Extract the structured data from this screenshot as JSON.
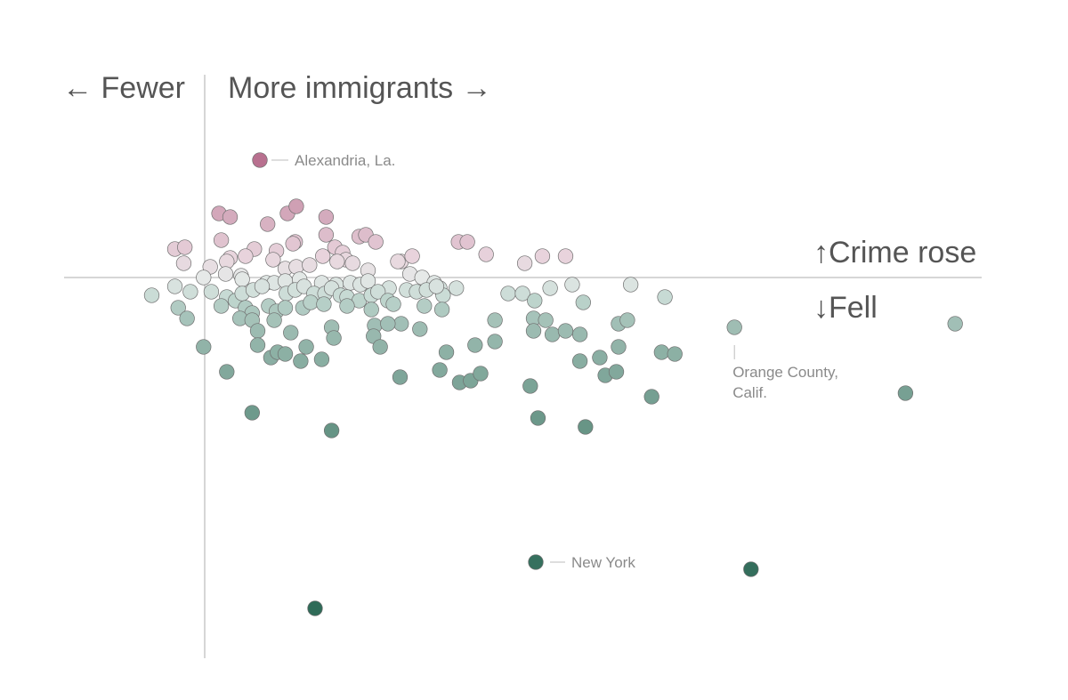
{
  "chart_data": {
    "type": "scatter",
    "title": "",
    "xlabel": "",
    "ylabel": "",
    "x_direction_labels": {
      "left": "← Fewer",
      "right": "More immigrants →"
    },
    "y_direction_labels": {
      "up": "↑Crime rose",
      "down": "↓Fell"
    },
    "xlim": [
      -12,
      70
    ],
    "ylim": [
      -30,
      10.5
    ],
    "grid": false,
    "legend": "none",
    "color_scale": {
      "rose_strong": "#b8708f",
      "rose_light": "#e8d3dc",
      "neutral": "#e6e9e8",
      "fell_light": "#c4d9d2",
      "fell_strong": "#2f6b58"
    },
    "annotations": [
      {
        "id": "alexandria",
        "label": "Alexandria, La.",
        "x": 5,
        "y": 6.6
      },
      {
        "id": "orange",
        "label_lines": [
          "Orange County,",
          "Calif."
        ],
        "x": 48,
        "y": -2.8
      },
      {
        "id": "newyork",
        "label": "New York",
        "x": 30,
        "y": -16.0
      }
    ],
    "points": [
      {
        "x": 5,
        "y": 6.6
      },
      {
        "x": 1.3,
        "y": 3.6
      },
      {
        "x": 2.3,
        "y": 3.4
      },
      {
        "x": 5.7,
        "y": 3.0
      },
      {
        "x": 7.5,
        "y": 3.6
      },
      {
        "x": 8.3,
        "y": 4.0
      },
      {
        "x": 11.0,
        "y": 3.4
      },
      {
        "x": 1.5,
        "y": 2.1
      },
      {
        "x": 4.5,
        "y": 1.6
      },
      {
        "x": 6.5,
        "y": 1.5
      },
      {
        "x": 8.2,
        "y": 2.0
      },
      {
        "x": 11,
        "y": 2.4
      },
      {
        "x": 14,
        "y": 2.3
      },
      {
        "x": 14.6,
        "y": 2.4
      },
      {
        "x": 15.5,
        "y": 2.0
      },
      {
        "x": 23,
        "y": 2.0
      },
      {
        "x": 23.8,
        "y": 2.0
      },
      {
        "x": 25.5,
        "y": 1.3
      },
      {
        "x": 30.6,
        "y": 1.2
      },
      {
        "x": -2.7,
        "y": 1.6
      },
      {
        "x": -1.8,
        "y": 1.7
      },
      {
        "x": -1.9,
        "y": 0.8
      },
      {
        "x": 2.3,
        "y": 1.1
      },
      {
        "x": 3.7,
        "y": 1.2
      },
      {
        "x": 6.2,
        "y": 1.0
      },
      {
        "x": 8.0,
        "y": 1.9
      },
      {
        "x": 10.7,
        "y": 1.2
      },
      {
        "x": 11.8,
        "y": 1.7
      },
      {
        "x": 12.5,
        "y": 1.4
      },
      {
        "x": 12.8,
        "y": 1.0
      },
      {
        "x": 13.4,
        "y": 0.8
      },
      {
        "x": 17.8,
        "y": 0.9
      },
      {
        "x": 18.8,
        "y": 1.2
      },
      {
        "x": 29,
        "y": 0.8
      },
      {
        "x": 32.7,
        "y": 1.2
      },
      {
        "x": 0.5,
        "y": 0.6
      },
      {
        "x": 2.0,
        "y": 0.9
      },
      {
        "x": 7.3,
        "y": 0.5
      },
      {
        "x": 8.3,
        "y": 0.6
      },
      {
        "x": 9.5,
        "y": 0.7
      },
      {
        "x": 12.0,
        "y": 0.9
      },
      {
        "x": 14.8,
        "y": 0.4
      },
      {
        "x": 17.5,
        "y": 0.9
      },
      {
        "x": 18.6,
        "y": 0.2
      },
      {
        "x": 19.7,
        "y": 0.0
      },
      {
        "x": -0.1,
        "y": 0.0
      },
      {
        "x": 1.9,
        "y": 0.2
      },
      {
        "x": 3.3,
        "y": 0.1
      },
      {
        "x": 3.4,
        "y": -0.1
      },
      {
        "x": 5.6,
        "y": -0.3
      },
      {
        "x": 6.3,
        "y": -0.3
      },
      {
        "x": 7.3,
        "y": -0.2
      },
      {
        "x": 8.6,
        "y": -0.1
      },
      {
        "x": 10.6,
        "y": -0.3
      },
      {
        "x": 11.9,
        "y": -0.4
      },
      {
        "x": 13.2,
        "y": -0.3
      },
      {
        "x": 14.1,
        "y": -0.4
      },
      {
        "x": 14.8,
        "y": -0.2
      },
      {
        "x": 16.7,
        "y": -0.6
      },
      {
        "x": 20.8,
        "y": -0.3
      },
      {
        "x": 21.3,
        "y": -0.6
      },
      {
        "x": 22.8,
        "y": -0.6
      },
      {
        "x": -4.8,
        "y": -1.0
      },
      {
        "x": -2.7,
        "y": -0.5
      },
      {
        "x": -1.3,
        "y": -0.8
      },
      {
        "x": 0.6,
        "y": -0.8
      },
      {
        "x": 2.0,
        "y": -1.1
      },
      {
        "x": 2.8,
        "y": -1.3
      },
      {
        "x": 3.4,
        "y": -0.9
      },
      {
        "x": 4.4,
        "y": -0.7
      },
      {
        "x": 5.2,
        "y": -0.5
      },
      {
        "x": 7.4,
        "y": -0.9
      },
      {
        "x": 8.2,
        "y": -0.7
      },
      {
        "x": 9.0,
        "y": -0.5
      },
      {
        "x": 9.9,
        "y": -0.9
      },
      {
        "x": 10.9,
        "y": -0.9
      },
      {
        "x": 11.5,
        "y": -0.6
      },
      {
        "x": 12.3,
        "y": -1.0
      },
      {
        "x": 12.9,
        "y": -1.1
      },
      {
        "x": 14.0,
        "y": -1.3
      },
      {
        "x": 15.1,
        "y": -1.0
      },
      {
        "x": 15.7,
        "y": -0.8
      },
      {
        "x": 16.6,
        "y": -1.3
      },
      {
        "x": 18.3,
        "y": -0.7
      },
      {
        "x": 19.2,
        "y": -0.8
      },
      {
        "x": 20.1,
        "y": -0.7
      },
      {
        "x": 21.6,
        "y": -1.0
      },
      {
        "x": 21.0,
        "y": -0.5
      },
      {
        "x": 27.5,
        "y": -0.9
      },
      {
        "x": 28.8,
        "y": -0.9
      },
      {
        "x": 31.3,
        "y": -0.6
      },
      {
        "x": 33.3,
        "y": -0.4
      },
      {
        "x": 38.6,
        "y": -0.4
      },
      {
        "x": 41.7,
        "y": -1.1
      },
      {
        "x": 29.9,
        "y": -1.3
      },
      {
        "x": 34.3,
        "y": -1.4
      },
      {
        "x": -2.4,
        "y": -1.7
      },
      {
        "x": 1.5,
        "y": -1.6
      },
      {
        "x": 3.7,
        "y": -1.7
      },
      {
        "x": 4.3,
        "y": -2.0
      },
      {
        "x": 5.8,
        "y": -1.6
      },
      {
        "x": 6.5,
        "y": -1.9
      },
      {
        "x": 7.3,
        "y": -1.7
      },
      {
        "x": 8.9,
        "y": -1.7
      },
      {
        "x": 9.6,
        "y": -1.4
      },
      {
        "x": 10.8,
        "y": -1.5
      },
      {
        "x": 12.9,
        "y": -1.6
      },
      {
        "x": 15.1,
        "y": -1.8
      },
      {
        "x": 17.1,
        "y": -1.5
      },
      {
        "x": 17.8,
        "y": -2.6
      },
      {
        "x": 19.9,
        "y": -1.6
      },
      {
        "x": 21.5,
        "y": -1.8
      },
      {
        "x": -1.6,
        "y": -2.3
      },
      {
        "x": 3.2,
        "y": -2.3
      },
      {
        "x": 4.3,
        "y": -2.4
      },
      {
        "x": 6.3,
        "y": -2.4
      },
      {
        "x": 11.5,
        "y": -2.8
      },
      {
        "x": 15.4,
        "y": -2.7
      },
      {
        "x": 16.6,
        "y": -2.6
      },
      {
        "x": 19.5,
        "y": -2.9
      },
      {
        "x": 26.3,
        "y": -2.4
      },
      {
        "x": 29.8,
        "y": -2.3
      },
      {
        "x": 30.9,
        "y": -2.4
      },
      {
        "x": 37.5,
        "y": -2.6
      },
      {
        "x": 38.3,
        "y": -2.4
      },
      {
        "x": 48,
        "y": -2.8
      },
      {
        "x": 68,
        "y": -2.6
      },
      {
        "x": 4.8,
        "y": -3.0
      },
      {
        "x": 7.8,
        "y": -3.1
      },
      {
        "x": 15.3,
        "y": -3.3
      },
      {
        "x": 29.8,
        "y": -3.0
      },
      {
        "x": 31.5,
        "y": -3.2
      },
      {
        "x": 32.7,
        "y": -3.0
      },
      {
        "x": 34.0,
        "y": -3.2
      },
      {
        "x": 26.3,
        "y": -3.6
      },
      {
        "x": -0.1,
        "y": -3.9
      },
      {
        "x": 9.2,
        "y": -3.9
      },
      {
        "x": 4.8,
        "y": -3.8
      },
      {
        "x": 11.7,
        "y": -3.4
      },
      {
        "x": 15.9,
        "y": -3.9
      },
      {
        "x": 21.9,
        "y": -4.2
      },
      {
        "x": 24.5,
        "y": -3.8
      },
      {
        "x": 37.5,
        "y": -3.9
      },
      {
        "x": 41.4,
        "y": -4.2
      },
      {
        "x": 42.6,
        "y": -4.3
      },
      {
        "x": 6.0,
        "y": -4.5
      },
      {
        "x": 6.6,
        "y": -4.2
      },
      {
        "x": 7.3,
        "y": -4.3
      },
      {
        "x": 8.7,
        "y": -4.7
      },
      {
        "x": 10.6,
        "y": -4.6
      },
      {
        "x": 34.0,
        "y": -4.7
      },
      {
        "x": 35.8,
        "y": -4.5
      },
      {
        "x": 2.0,
        "y": -5.3
      },
      {
        "x": 17.7,
        "y": -5.6
      },
      {
        "x": 21.3,
        "y": -5.2
      },
      {
        "x": 23.1,
        "y": -5.9
      },
      {
        "x": 24.1,
        "y": -5.8
      },
      {
        "x": 25.0,
        "y": -5.4
      },
      {
        "x": 29.5,
        "y": -6.1
      },
      {
        "x": 36.3,
        "y": -5.5
      },
      {
        "x": 37.3,
        "y": -5.3
      },
      {
        "x": 4.3,
        "y": -7.6
      },
      {
        "x": 11.5,
        "y": -8.6
      },
      {
        "x": 30.2,
        "y": -7.9
      },
      {
        "x": 34.5,
        "y": -8.4
      },
      {
        "x": 40.5,
        "y": -6.7
      },
      {
        "x": 63.5,
        "y": -6.5
      },
      {
        "x": 30,
        "y": -16.0
      },
      {
        "x": 49.5,
        "y": -16.4
      },
      {
        "x": 10,
        "y": -18.6
      }
    ]
  }
}
